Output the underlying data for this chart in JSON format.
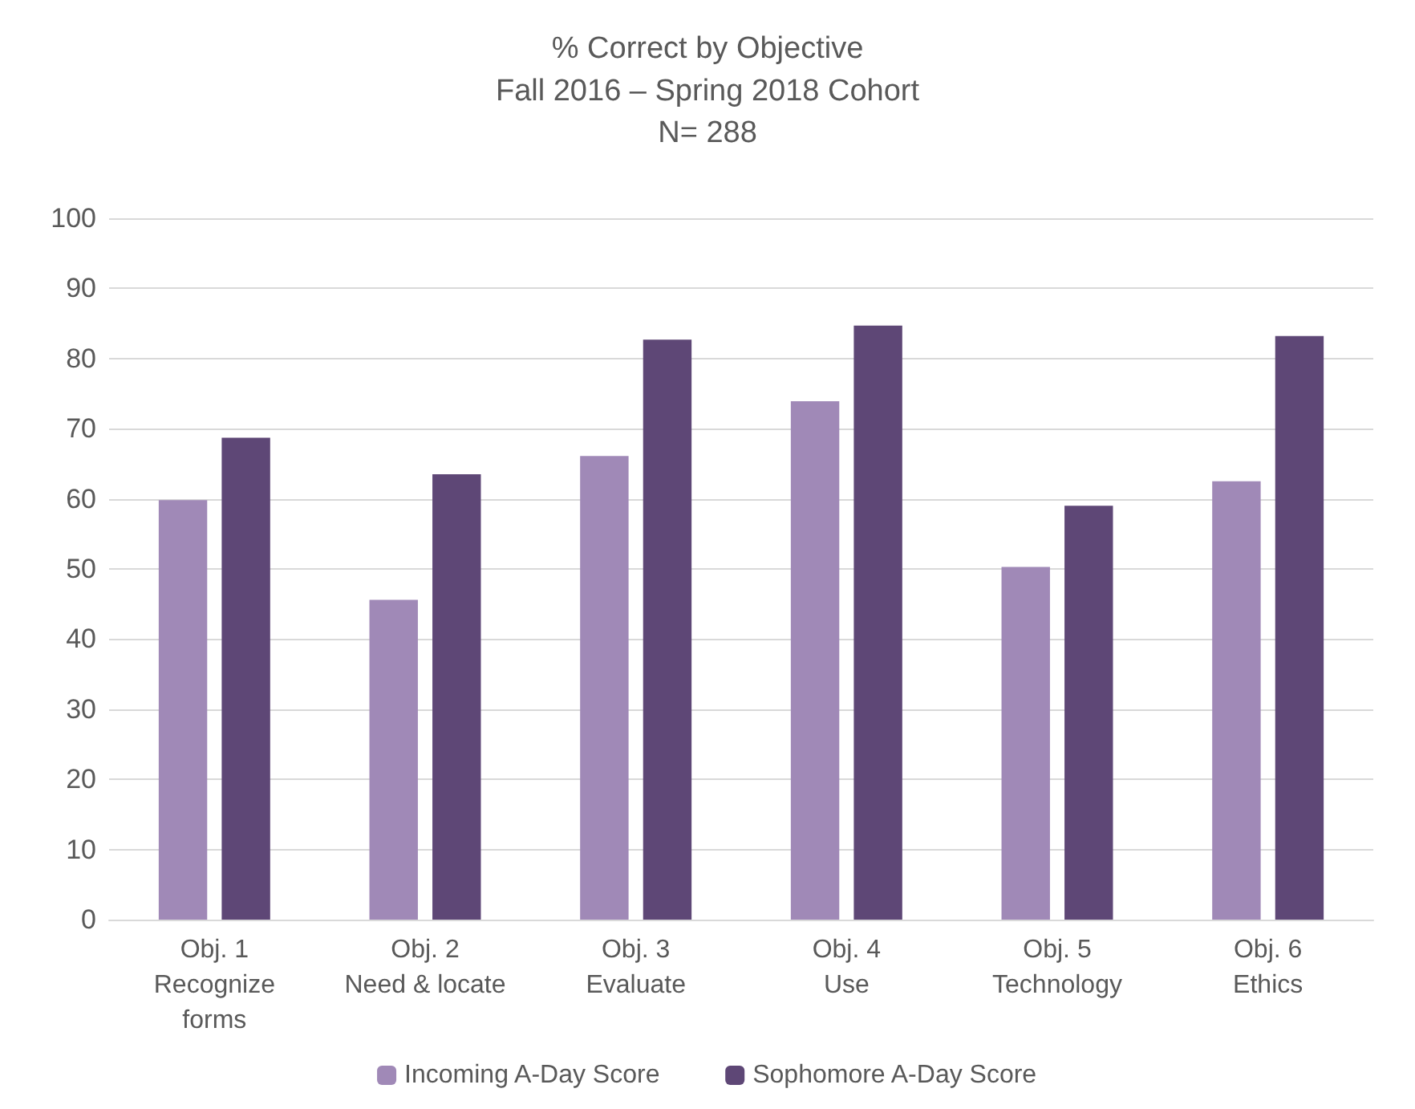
{
  "chart_data": {
    "type": "bar",
    "title": "% Correct by Objective",
    "subtitle": "Fall 2016 – Spring 2018 Cohort\nN= 288",
    "categories": [
      "Obj. 1\nRecognize\nforms",
      "Obj. 2\nNeed & locate",
      "Obj. 3\nEvaluate",
      "Obj. 4\nUse",
      "Obj. 5\nTechnology",
      "Obj. 6\nEthics"
    ],
    "series": [
      {
        "name": "Incoming A-Day Score",
        "color": "#a089b7",
        "values": [
          59.8,
          45.6,
          66.1,
          73.9,
          50.3,
          62.5
        ]
      },
      {
        "name": "Sophomore A-Day Score",
        "color": "#5e4776",
        "values": [
          68.7,
          63.5,
          82.7,
          84.7,
          59.0,
          83.2
        ]
      }
    ],
    "ylim": [
      0,
      100
    ],
    "yticks": [
      0,
      10,
      20,
      30,
      40,
      50,
      60,
      70,
      80,
      90,
      100
    ],
    "grid": "y",
    "legend": "bottom"
  }
}
